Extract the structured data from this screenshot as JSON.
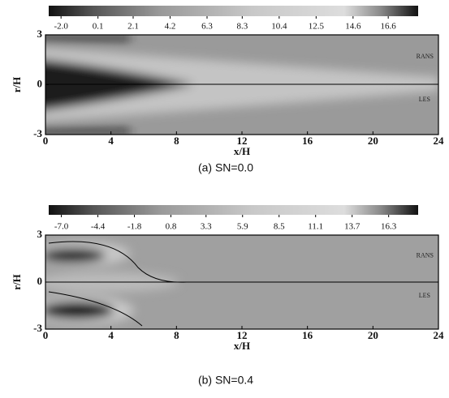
{
  "chart_data": [
    {
      "type": "contour",
      "caption": "(a)  SN=0.0",
      "xlabel": "x/H",
      "ylabel": "r/H",
      "xlim": [
        0,
        24
      ],
      "xticks": [
        0,
        4,
        8,
        12,
        16,
        20,
        24
      ],
      "ylim": [
        -3,
        3
      ],
      "yticks": [
        -3,
        0,
        3
      ],
      "clim": [
        -2.7,
        18.3
      ],
      "cticks": [
        {
          "value": -2,
          "label": "-2.0"
        },
        0.1,
        2.1,
        4.2,
        6.3,
        8.3,
        10.4,
        12.5,
        14.6,
        16.6
      ],
      "annotations": [
        "RANS",
        "LES"
      ]
    },
    {
      "type": "contour",
      "caption": "(b)  SN=0.4",
      "xlabel": "x/H",
      "ylabel": "r/H",
      "xlim": [
        0,
        24
      ],
      "xticks": [
        0,
        4,
        8,
        12,
        16,
        20,
        24
      ],
      "ylim": [
        -3,
        3
      ],
      "yticks": [
        -3,
        0,
        3
      ],
      "clim": [
        -7.9,
        18.4
      ],
      "cticks": [
        {
          "value": -7,
          "label": "-7.0"
        },
        -4.4,
        -1.8,
        0.8,
        3.3,
        5.9,
        8.5,
        11.1,
        13.7,
        16.3
      ],
      "annotations": [
        "RANS",
        "LES"
      ]
    }
  ]
}
